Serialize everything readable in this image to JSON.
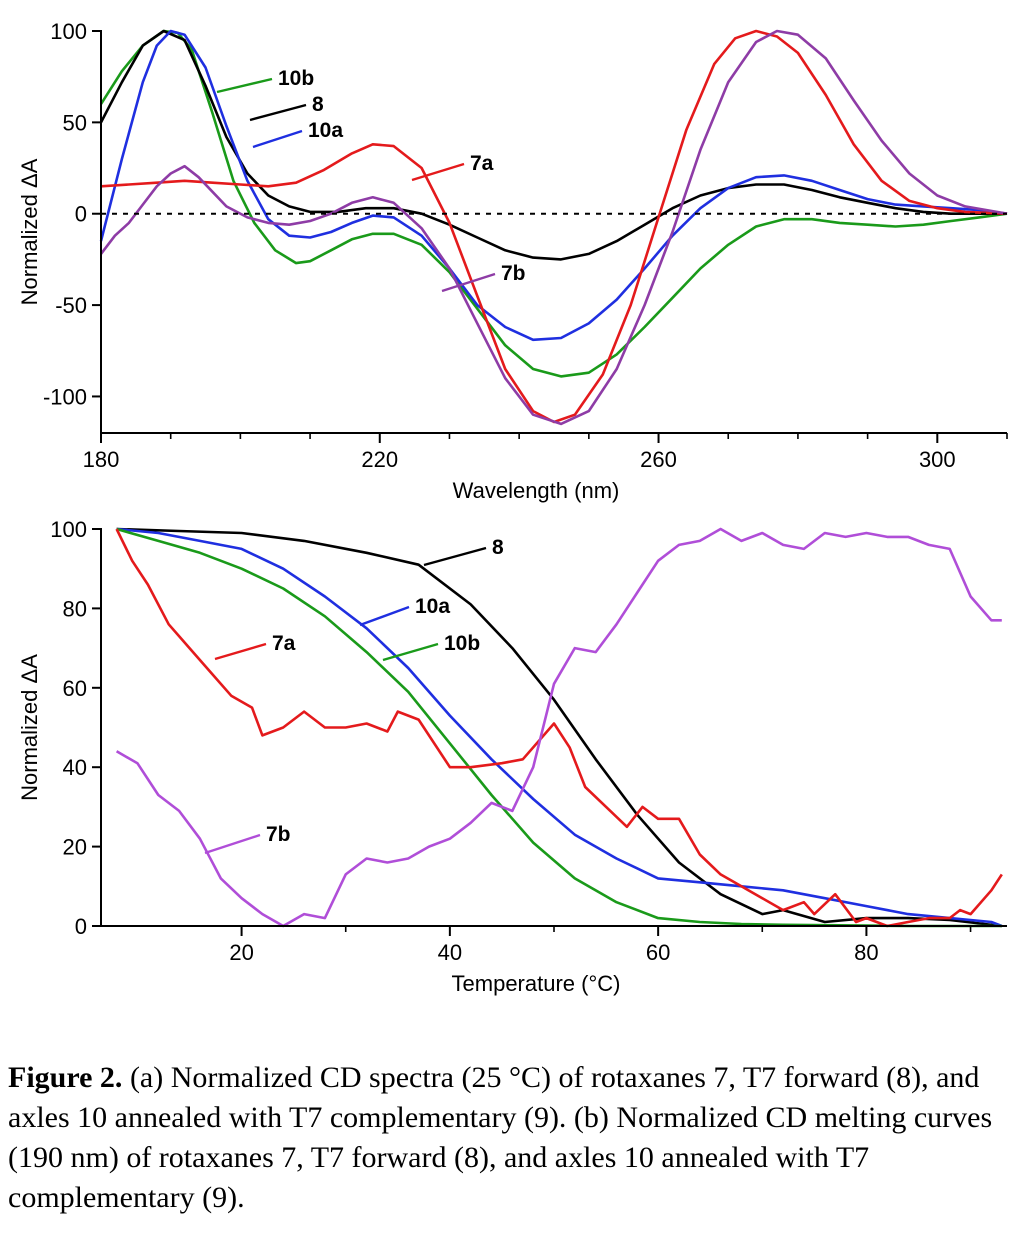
{
  "caption": {
    "lead": "Figure 2.",
    "text": "(a) Normalized CD spectra (25 °C) of rotaxanes 7, T7 forward (8), and axles 10 annealed with T7 complementary (9). (b) Normalized CD melting curves (190 nm) of rotaxanes 7, T7 forward (8), and axles 10 annealed with T7 complementary (9)."
  },
  "colors": {
    "7a": "#e41a1c",
    "7b": "#8e3ca6",
    "8": "#000000",
    "10a": "#1f2fe0",
    "10b": "#1a9a1a",
    "7b_melt": "#b04ed8"
  },
  "chart_data": [
    {
      "type": "line",
      "xlabel": "Wavelength (nm)",
      "ylabel": "Normalized ΔA",
      "xlim": [
        180,
        310
      ],
      "ylim": [
        -120,
        100
      ],
      "x_ticks": [
        180,
        220,
        260,
        300
      ],
      "y_ticks": [
        100,
        50,
        0,
        -50,
        -100
      ],
      "grid": false,
      "zero_line": "dashed",
      "series": [
        {
          "name": "10b",
          "color_key": "10b",
          "x": [
            180,
            183,
            186,
            189,
            191,
            193,
            196,
            199,
            202,
            205,
            208,
            210,
            213,
            216,
            219,
            222,
            226,
            230,
            234,
            238,
            242,
            246,
            250,
            254,
            258,
            262,
            266,
            270,
            274,
            278,
            282,
            286,
            290,
            294,
            298,
            302,
            306,
            310
          ],
          "y": [
            60,
            78,
            92,
            100,
            99,
            90,
            55,
            18,
            -5,
            -20,
            -27,
            -26,
            -20,
            -14,
            -11,
            -11,
            -17,
            -32,
            -52,
            -72,
            -85,
            -89,
            -87,
            -77,
            -62,
            -46,
            -30,
            -17,
            -7,
            -3,
            -3,
            -5,
            -6,
            -7,
            -6,
            -4,
            -2,
            0
          ]
        },
        {
          "name": "8",
          "color_key": "8",
          "x": [
            180,
            183,
            186,
            189,
            192,
            195,
            198,
            201,
            204,
            207,
            210,
            214,
            218,
            222,
            226,
            230,
            234,
            238,
            242,
            246,
            250,
            254,
            258,
            262,
            266,
            270,
            274,
            278,
            282,
            286,
            290,
            294,
            298,
            302,
            306,
            310
          ],
          "y": [
            50,
            72,
            92,
            100,
            95,
            70,
            42,
            22,
            10,
            4,
            1,
            1,
            3,
            3,
            0,
            -6,
            -13,
            -20,
            -24,
            -25,
            -22,
            -15,
            -6,
            3,
            10,
            14,
            16,
            16,
            13,
            9,
            6,
            3,
            1,
            0,
            0,
            0
          ]
        },
        {
          "name": "10a",
          "color_key": "10a",
          "x": [
            180,
            183,
            186,
            188,
            190,
            192,
            195,
            198,
            201,
            204,
            207,
            210,
            213,
            216,
            219,
            222,
            226,
            230,
            234,
            238,
            242,
            246,
            250,
            254,
            258,
            262,
            266,
            270,
            274,
            278,
            282,
            286,
            290,
            294,
            298,
            302,
            306,
            310
          ],
          "y": [
            -15,
            30,
            72,
            92,
            100,
            98,
            80,
            48,
            18,
            -3,
            -12,
            -13,
            -10,
            -5,
            -1,
            -2,
            -12,
            -30,
            -50,
            -62,
            -69,
            -68,
            -60,
            -47,
            -30,
            -12,
            3,
            14,
            20,
            21,
            18,
            13,
            8,
            5,
            4,
            3,
            2,
            0
          ]
        },
        {
          "name": "7a",
          "color_key": "7a",
          "x": [
            180,
            184,
            188,
            192,
            196,
            200,
            204,
            208,
            212,
            216,
            219,
            222,
            226,
            230,
            234,
            238,
            242,
            245,
            248,
            252,
            256,
            260,
            264,
            268,
            271,
            274,
            277,
            280,
            284,
            288,
            292,
            296,
            300,
            304,
            310
          ],
          "y": [
            15,
            16,
            17,
            18,
            17,
            16,
            15,
            17,
            24,
            33,
            38,
            37,
            25,
            -5,
            -45,
            -85,
            -108,
            -114,
            -110,
            -88,
            -50,
            -2,
            46,
            82,
            96,
            100,
            97,
            88,
            65,
            38,
            18,
            7,
            3,
            1,
            0
          ]
        },
        {
          "name": "7b",
          "color_key": "7b",
          "x": [
            180,
            182,
            184,
            186,
            188,
            190,
            192,
            194,
            196,
            198,
            201,
            204,
            207,
            210,
            213,
            216,
            219,
            222,
            226,
            230,
            234,
            238,
            242,
            246,
            250,
            254,
            258,
            262,
            266,
            270,
            274,
            277,
            280,
            284,
            288,
            292,
            296,
            300,
            304,
            310
          ],
          "y": [
            -22,
            -12,
            -5,
            5,
            15,
            22,
            26,
            20,
            12,
            4,
            -2,
            -5,
            -6,
            -4,
            0,
            6,
            9,
            6,
            -8,
            -30,
            -60,
            -90,
            -110,
            -115,
            -108,
            -85,
            -50,
            -10,
            35,
            72,
            94,
            100,
            98,
            85,
            62,
            40,
            22,
            10,
            4,
            0
          ]
        }
      ],
      "labels": [
        {
          "text": "10b",
          "series": "10b"
        },
        {
          "text": "8",
          "series": "8"
        },
        {
          "text": "10a",
          "series": "10a"
        },
        {
          "text": "7a",
          "series": "7a"
        },
        {
          "text": "7b",
          "series": "7b"
        }
      ]
    },
    {
      "type": "line",
      "xlabel": "Temperature (°C)",
      "ylabel": "Normalized ΔA",
      "xlim": [
        6.5,
        93.5
      ],
      "ylim": [
        0,
        100
      ],
      "x_ticks": [
        20,
        40,
        60,
        80
      ],
      "y_ticks": [
        0,
        20,
        40,
        60,
        80,
        100
      ],
      "grid": false,
      "series": [
        {
          "name": "8",
          "color_key": "8",
          "x": [
            8,
            14,
            20,
            26,
            32,
            37,
            42,
            46,
            50,
            54,
            58,
            62,
            66,
            70,
            72,
            76,
            80,
            84,
            88,
            93
          ],
          "y": [
            100,
            99.5,
            99,
            97,
            94,
            91,
            81,
            70,
            57,
            42,
            28,
            16,
            8,
            3,
            4,
            1,
            2,
            2,
            1.5,
            0
          ]
        },
        {
          "name": "10a",
          "color_key": "10a",
          "x": [
            8,
            12,
            16,
            20,
            24,
            28,
            32,
            36,
            40,
            44,
            48,
            52,
            56,
            60,
            64,
            68,
            72,
            76,
            80,
            84,
            88,
            92,
            93
          ],
          "y": [
            100,
            99,
            97,
            95,
            90,
            83,
            75,
            65,
            53,
            42,
            32,
            23,
            17,
            12,
            11,
            10,
            9,
            7,
            5,
            3,
            2,
            1,
            0
          ]
        },
        {
          "name": "10b",
          "color_key": "10b",
          "x": [
            8,
            12,
            16,
            20,
            24,
            28,
            32,
            36,
            40,
            44,
            48,
            52,
            56,
            60,
            64,
            68,
            72,
            76,
            80,
            84,
            88,
            93
          ],
          "y": [
            100,
            97,
            94,
            90,
            85,
            78,
            69,
            59,
            46,
            33,
            21,
            12,
            6,
            2,
            1,
            0.5,
            0.3,
            0.2,
            0.1,
            0,
            0,
            0
          ]
        },
        {
          "name": "7a",
          "color_key": "7a",
          "x": [
            8,
            9.5,
            11,
            13,
            15,
            17,
            19,
            21,
            22,
            24,
            26,
            28,
            30,
            32,
            34,
            35,
            37,
            40,
            42,
            45,
            47,
            50,
            51.5,
            53,
            55,
            57,
            58.5,
            60,
            62,
            64,
            66,
            68,
            70,
            72,
            74,
            75,
            77,
            79,
            80,
            82,
            84,
            86,
            88,
            89,
            90,
            92,
            93
          ],
          "y": [
            100,
            92,
            86,
            76,
            70,
            64,
            58,
            55,
            48,
            50,
            54,
            50,
            50,
            51,
            49,
            54,
            52,
            40,
            40,
            41,
            42,
            51,
            45,
            35,
            30,
            25,
            30,
            27,
            27,
            18,
            13,
            10,
            7,
            4,
            6,
            3,
            8,
            1,
            2,
            0,
            1,
            2,
            2,
            4,
            3,
            9,
            13
          ]
        },
        {
          "name": "7b",
          "color_key": "7b_melt",
          "x": [
            8,
            10,
            12,
            14,
            16,
            18,
            20,
            22,
            24,
            26,
            28,
            30,
            32,
            34,
            36,
            38,
            40,
            42,
            44,
            46,
            48,
            50,
            52,
            54,
            56,
            58,
            60,
            62,
            64,
            66,
            68,
            70,
            72,
            74,
            76,
            78,
            80,
            82,
            84,
            86,
            88,
            90,
            92,
            93
          ],
          "y": [
            44,
            41,
            33,
            29,
            22,
            12,
            7,
            3,
            0,
            3,
            2,
            13,
            17,
            16,
            17,
            20,
            22,
            26,
            31,
            29,
            40,
            61,
            70,
            69,
            76,
            84,
            92,
            96,
            97,
            100,
            97,
            99,
            96,
            95,
            99,
            98,
            99,
            98,
            98,
            96,
            95,
            83,
            77,
            77
          ]
        }
      ],
      "labels": [
        {
          "text": "8",
          "series": "8"
        },
        {
          "text": "10a",
          "series": "10a"
        },
        {
          "text": "10b",
          "series": "10b"
        },
        {
          "text": "7a",
          "series": "7a"
        },
        {
          "text": "7b",
          "series": "7b"
        }
      ]
    }
  ]
}
